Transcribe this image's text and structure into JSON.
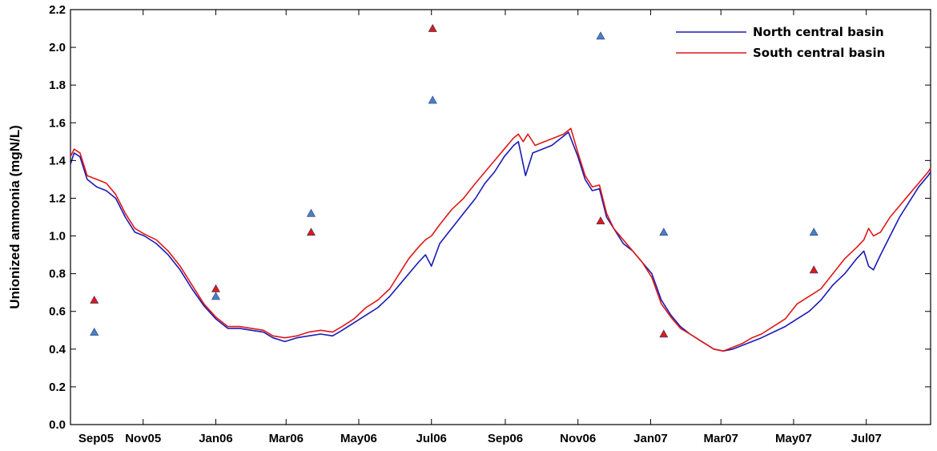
{
  "chart_data": {
    "type": "line",
    "title": "",
    "xlabel": "",
    "ylabel": "Unionized ammonia (mgN/L)",
    "x_range_days": [
      0,
      722
    ],
    "ylim": [
      0,
      2.2
    ],
    "yticks": [
      0.0,
      0.2,
      0.4,
      0.6,
      0.8,
      1.0,
      1.2,
      1.4,
      1.6,
      1.8,
      2.0,
      2.2
    ],
    "ytick_labels": [
      "0.0",
      "0.2",
      "0.4",
      "0.6",
      "0.8",
      "1.0",
      "1.2",
      "1.4",
      "1.6",
      "1.8",
      "2.0",
      "2.2"
    ],
    "xticks": [
      0,
      61,
      122,
      181,
      242,
      303,
      365,
      426,
      487,
      546,
      607,
      668
    ],
    "xtick_labels": [
      "Sep05",
      "Nov05",
      "Jan06",
      "Mar06",
      "May06",
      "Jul06",
      "Sep06",
      "Nov06",
      "Jan07",
      "Mar07",
      "May07",
      "Jul07"
    ],
    "grid": false,
    "legend_position": "top-right",
    "series": [
      {
        "name": "North central basin",
        "color": "#1a1ab8",
        "kind": "line",
        "points": [
          [
            0,
            1.38
          ],
          [
            3,
            1.44
          ],
          [
            8,
            1.42
          ],
          [
            14,
            1.3
          ],
          [
            22,
            1.26
          ],
          [
            30,
            1.24
          ],
          [
            38,
            1.2
          ],
          [
            46,
            1.1
          ],
          [
            54,
            1.02
          ],
          [
            62,
            1.0
          ],
          [
            72,
            0.96
          ],
          [
            82,
            0.9
          ],
          [
            92,
            0.82
          ],
          [
            102,
            0.72
          ],
          [
            112,
            0.63
          ],
          [
            122,
            0.56
          ],
          [
            132,
            0.51
          ],
          [
            142,
            0.51
          ],
          [
            152,
            0.5
          ],
          [
            162,
            0.49
          ],
          [
            170,
            0.46
          ],
          [
            180,
            0.44
          ],
          [
            190,
            0.46
          ],
          [
            200,
            0.47
          ],
          [
            210,
            0.48
          ],
          [
            220,
            0.47
          ],
          [
            228,
            0.5
          ],
          [
            238,
            0.54
          ],
          [
            248,
            0.58
          ],
          [
            258,
            0.62
          ],
          [
            268,
            0.68
          ],
          [
            276,
            0.74
          ],
          [
            284,
            0.8
          ],
          [
            292,
            0.86
          ],
          [
            298,
            0.9
          ],
          [
            303,
            0.84
          ],
          [
            310,
            0.96
          ],
          [
            320,
            1.04
          ],
          [
            330,
            1.12
          ],
          [
            340,
            1.2
          ],
          [
            348,
            1.28
          ],
          [
            356,
            1.34
          ],
          [
            364,
            1.42
          ],
          [
            372,
            1.48
          ],
          [
            376,
            1.5
          ],
          [
            382,
            1.32
          ],
          [
            388,
            1.44
          ],
          [
            396,
            1.46
          ],
          [
            404,
            1.48
          ],
          [
            412,
            1.52
          ],
          [
            418,
            1.55
          ],
          [
            426,
            1.42
          ],
          [
            432,
            1.3
          ],
          [
            438,
            1.24
          ],
          [
            444,
            1.25
          ],
          [
            450,
            1.1
          ],
          [
            456,
            1.04
          ],
          [
            464,
            0.96
          ],
          [
            472,
            0.92
          ],
          [
            480,
            0.86
          ],
          [
            488,
            0.8
          ],
          [
            496,
            0.66
          ],
          [
            504,
            0.58
          ],
          [
            512,
            0.52
          ],
          [
            520,
            0.48
          ],
          [
            530,
            0.44
          ],
          [
            540,
            0.4
          ],
          [
            548,
            0.39
          ],
          [
            556,
            0.4
          ],
          [
            564,
            0.42
          ],
          [
            572,
            0.44
          ],
          [
            580,
            0.46
          ],
          [
            590,
            0.49
          ],
          [
            600,
            0.52
          ],
          [
            610,
            0.56
          ],
          [
            620,
            0.6
          ],
          [
            630,
            0.66
          ],
          [
            640,
            0.74
          ],
          [
            650,
            0.8
          ],
          [
            660,
            0.88
          ],
          [
            666,
            0.92
          ],
          [
            670,
            0.84
          ],
          [
            674,
            0.82
          ],
          [
            680,
            0.9
          ],
          [
            688,
            1.0
          ],
          [
            696,
            1.1
          ],
          [
            704,
            1.18
          ],
          [
            712,
            1.26
          ],
          [
            720,
            1.32
          ],
          [
            722,
            1.34
          ]
        ]
      },
      {
        "name": "South central basin",
        "color": "#e01818",
        "kind": "line",
        "points": [
          [
            0,
            1.42
          ],
          [
            3,
            1.46
          ],
          [
            8,
            1.44
          ],
          [
            14,
            1.32
          ],
          [
            22,
            1.3
          ],
          [
            30,
            1.28
          ],
          [
            38,
            1.22
          ],
          [
            46,
            1.12
          ],
          [
            54,
            1.04
          ],
          [
            62,
            1.01
          ],
          [
            72,
            0.98
          ],
          [
            82,
            0.92
          ],
          [
            92,
            0.84
          ],
          [
            102,
            0.74
          ],
          [
            112,
            0.64
          ],
          [
            122,
            0.57
          ],
          [
            132,
            0.52
          ],
          [
            142,
            0.52
          ],
          [
            152,
            0.51
          ],
          [
            162,
            0.5
          ],
          [
            170,
            0.47
          ],
          [
            180,
            0.46
          ],
          [
            190,
            0.47
          ],
          [
            200,
            0.49
          ],
          [
            210,
            0.5
          ],
          [
            220,
            0.49
          ],
          [
            228,
            0.52
          ],
          [
            238,
            0.56
          ],
          [
            248,
            0.62
          ],
          [
            258,
            0.66
          ],
          [
            268,
            0.72
          ],
          [
            276,
            0.8
          ],
          [
            284,
            0.88
          ],
          [
            292,
            0.94
          ],
          [
            298,
            0.98
          ],
          [
            303,
            1.0
          ],
          [
            310,
            1.06
          ],
          [
            320,
            1.14
          ],
          [
            330,
            1.2
          ],
          [
            340,
            1.28
          ],
          [
            348,
            1.34
          ],
          [
            356,
            1.4
          ],
          [
            364,
            1.46
          ],
          [
            372,
            1.52
          ],
          [
            376,
            1.54
          ],
          [
            380,
            1.5
          ],
          [
            384,
            1.54
          ],
          [
            390,
            1.48
          ],
          [
            398,
            1.5
          ],
          [
            406,
            1.52
          ],
          [
            414,
            1.54
          ],
          [
            420,
            1.57
          ],
          [
            426,
            1.44
          ],
          [
            432,
            1.32
          ],
          [
            438,
            1.26
          ],
          [
            444,
            1.27
          ],
          [
            450,
            1.12
          ],
          [
            456,
            1.04
          ],
          [
            464,
            0.98
          ],
          [
            472,
            0.92
          ],
          [
            480,
            0.86
          ],
          [
            488,
            0.78
          ],
          [
            496,
            0.64
          ],
          [
            504,
            0.57
          ],
          [
            512,
            0.51
          ],
          [
            520,
            0.48
          ],
          [
            530,
            0.44
          ],
          [
            540,
            0.4
          ],
          [
            548,
            0.39
          ],
          [
            556,
            0.41
          ],
          [
            564,
            0.43
          ],
          [
            572,
            0.46
          ],
          [
            580,
            0.48
          ],
          [
            590,
            0.52
          ],
          [
            600,
            0.56
          ],
          [
            610,
            0.64
          ],
          [
            620,
            0.68
          ],
          [
            630,
            0.72
          ],
          [
            640,
            0.8
          ],
          [
            650,
            0.88
          ],
          [
            660,
            0.94
          ],
          [
            666,
            0.98
          ],
          [
            670,
            1.04
          ],
          [
            674,
            1.0
          ],
          [
            680,
            1.02
          ],
          [
            688,
            1.1
          ],
          [
            696,
            1.16
          ],
          [
            704,
            1.22
          ],
          [
            712,
            1.28
          ],
          [
            720,
            1.34
          ],
          [
            722,
            1.36
          ]
        ]
      },
      {
        "name": "",
        "color": "#4a7fc8",
        "kind": "markers",
        "points": [
          [
            20,
            0.49
          ],
          [
            122,
            0.68
          ],
          [
            202,
            1.12
          ],
          [
            304,
            1.72
          ],
          [
            445,
            2.06
          ],
          [
            498,
            1.02
          ],
          [
            624,
            1.02
          ]
        ]
      },
      {
        "name": "",
        "color": "#e01818",
        "kind": "markers",
        "points": [
          [
            20,
            0.66
          ],
          [
            122,
            0.72
          ],
          [
            202,
            1.02
          ],
          [
            304,
            2.1
          ],
          [
            445,
            1.08
          ],
          [
            498,
            0.48
          ],
          [
            624,
            0.82
          ]
        ]
      }
    ]
  }
}
